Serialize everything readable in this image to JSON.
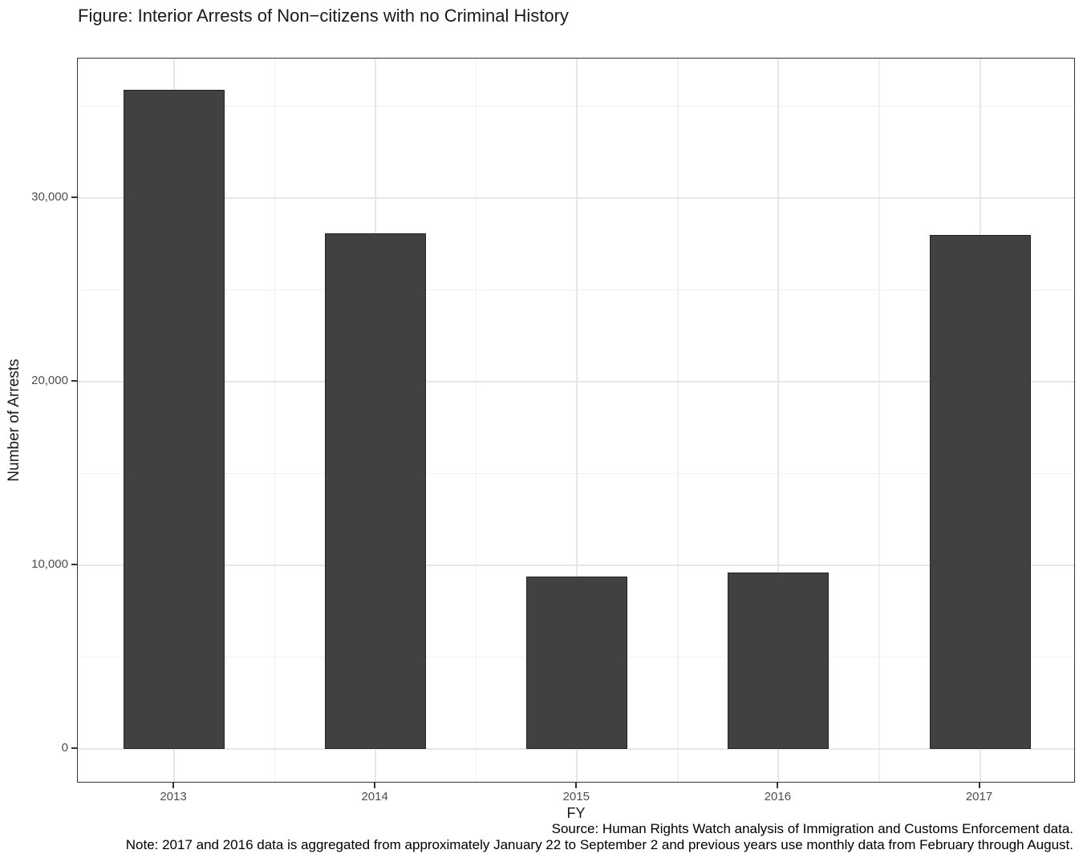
{
  "title": "Figure: Interior Arrests of Non−citizens with no Criminal History",
  "chart_data": {
    "type": "bar",
    "categories": [
      "2013",
      "2014",
      "2015",
      "2016",
      "2017"
    ],
    "values": [
      35900,
      28100,
      9400,
      9600,
      28000
    ],
    "title": "Figure: Interior Arrests of Non−citizens with no Criminal History",
    "xlabel": "FY",
    "ylabel": "Number of Arrests",
    "ylim": [
      0,
      37600
    ],
    "y_major_breaks": [
      0,
      10000,
      20000,
      30000
    ],
    "y_minor_breaks": [
      5000,
      15000,
      25000,
      35000
    ],
    "y_tick_labels": [
      "0",
      "10,000",
      "20,000",
      "30,000"
    ],
    "grid": "on",
    "legend": "none",
    "bar_color": "#414141",
    "panel_border_color": "#333333",
    "gridline_color": "#e6e6e6"
  },
  "caption": {
    "source": "Source: Human Rights Watch analysis of Immigration and Customs Enforcement data.",
    "note": "Note: 2017 and 2016 data is aggregated from approximately January 22 to September 2 and previous years use monthly data from February through August."
  }
}
